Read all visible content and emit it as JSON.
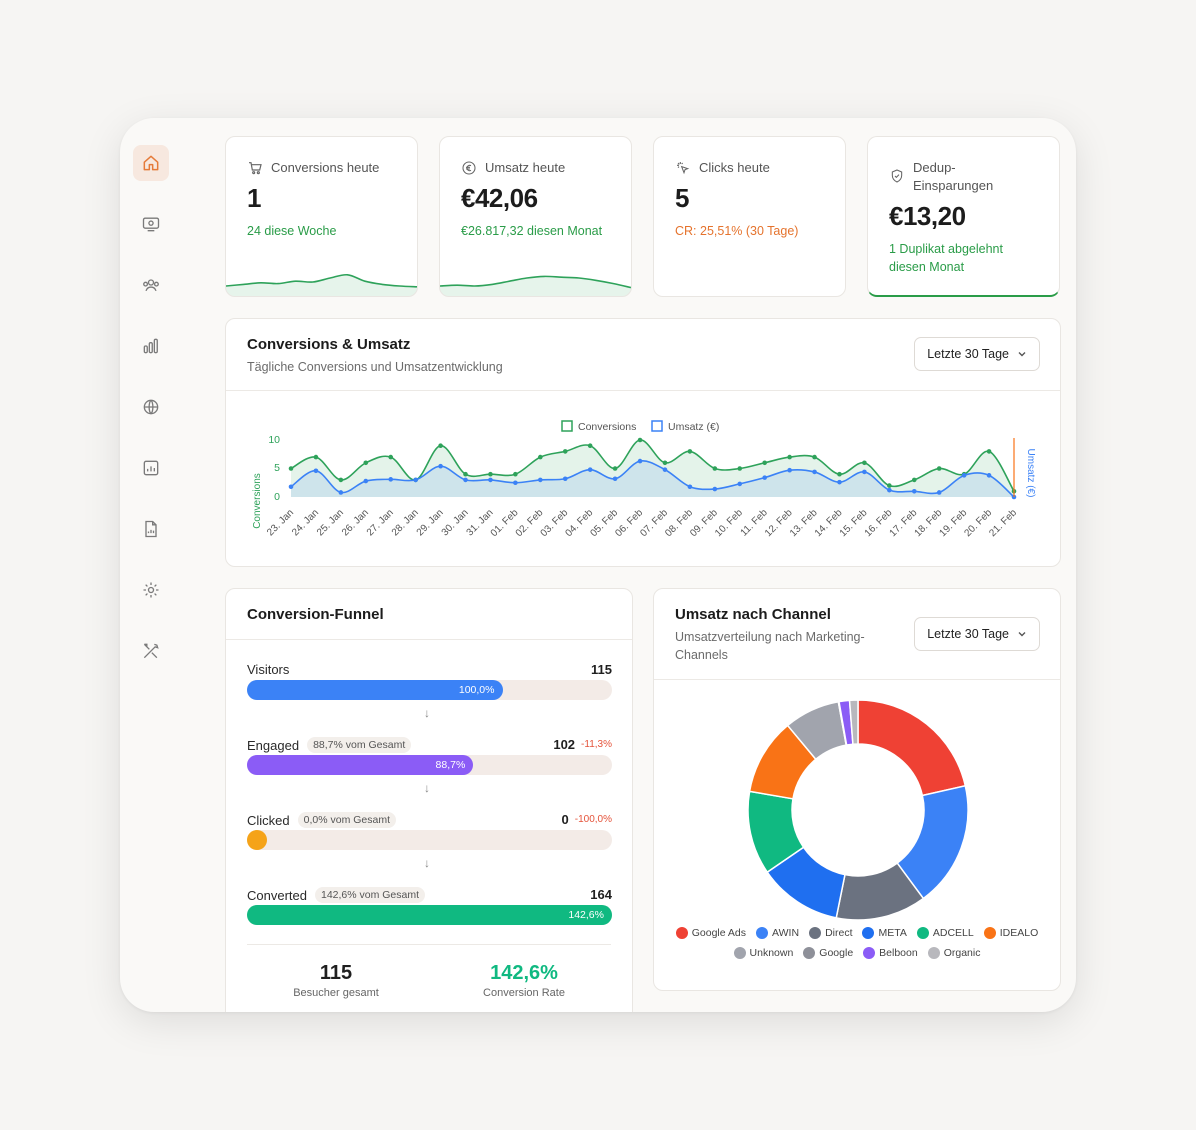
{
  "nav": [
    "home",
    "dashboard",
    "users",
    "analytics",
    "globe",
    "reports",
    "file-chart",
    "settings",
    "tools"
  ],
  "kpis": {
    "conversions": {
      "label": "Conversions heute",
      "value": "1",
      "sub": "24 diese Woche",
      "spark": [
        1,
        1.2,
        1.4,
        1.3,
        1.6,
        1.5,
        2,
        2.4,
        1.6,
        1.2,
        1.0,
        0.9
      ]
    },
    "umsatz": {
      "label": "Umsatz heute",
      "value": "€42,06",
      "sub": "€26.817,32 diesen Monat",
      "spark": [
        1,
        1.1,
        1.0,
        1.2,
        1.6,
        2.0,
        2.2,
        2.1,
        2.0,
        1.7,
        1.3,
        0.8
      ]
    },
    "clicks": {
      "label": "Clicks heute",
      "value": "5",
      "sub": "CR: 25,51% (30 Tage)"
    },
    "dedup": {
      "label": "Dedup-Einsparungen",
      "value": "€13,20",
      "sub": "1 Duplikat abgelehnt diesen Monat"
    }
  },
  "main_chart": {
    "title": "Conversions & Umsatz",
    "subtitle": "Tägliche Conversions und Umsatzentwicklung",
    "range": "Letzte 30 Tage",
    "legend_conversions": "Conversions",
    "legend_umsatz": "Umsatz (€)",
    "ylabel_left": "Conversions",
    "ylabel_right": "Umsatz (€)",
    "ticks_left": [
      "10",
      "5",
      "0"
    ]
  },
  "chart_data": {
    "type": "line",
    "x": [
      "23. Jan",
      "24. Jan",
      "25. Jan",
      "26. Jan",
      "27. Jan",
      "28. Jan",
      "29. Jan",
      "30. Jan",
      "31. Jan",
      "01. Feb",
      "02. Feb",
      "03. Feb",
      "04. Feb",
      "05. Feb",
      "06. Feb",
      "07. Feb",
      "08. Feb",
      "09. Feb",
      "10. Feb",
      "11. Feb",
      "12. Feb",
      "13. Feb",
      "14. Feb",
      "15. Feb",
      "16. Feb",
      "17. Feb",
      "18. Feb",
      "19. Feb",
      "20. Feb",
      "21. Feb"
    ],
    "series": [
      {
        "name": "Conversions",
        "color": "#2ea25a",
        "values": [
          5,
          7,
          3,
          6,
          7,
          3,
          9,
          4,
          4,
          4,
          7,
          8,
          9,
          5,
          10,
          6,
          8,
          5,
          5,
          6,
          7,
          7,
          4,
          6,
          2,
          3,
          5,
          4,
          8,
          1
        ]
      },
      {
        "name": "Umsatz (€)",
        "color": "#3b82f6",
        "values": [
          1.8,
          4.6,
          0.8,
          2.8,
          3.1,
          3.0,
          5.4,
          3.0,
          3.0,
          2.5,
          3.0,
          3.2,
          4.8,
          3.2,
          6.3,
          4.8,
          1.8,
          1.4,
          2.3,
          3.4,
          4.7,
          4.4,
          2.6,
          4.4,
          1.2,
          1.0,
          0.8,
          3.8,
          3.8,
          0
        ]
      }
    ],
    "ylim": [
      0,
      10
    ]
  },
  "funnel": {
    "title": "Conversion-Funnel",
    "steps": [
      {
        "label": "Visitors",
        "pill": "",
        "count": "115",
        "delta": "",
        "pct": "100,0%",
        "fill": 0.7,
        "color": "#3b82f6"
      },
      {
        "label": "Engaged",
        "pill": "88,7% vom Gesamt",
        "count": "102",
        "delta": "-11,3%",
        "pct": "88,7%",
        "fill": 0.62,
        "color": "#8b5cf6"
      },
      {
        "label": "Clicked",
        "pill": "0,0% vom Gesamt",
        "count": "0",
        "delta": "-100,0%",
        "pct": "",
        "fill": 0.05,
        "color": "#f5a319"
      },
      {
        "label": "Converted",
        "pill": "142,6% vom Gesamt",
        "count": "164",
        "delta": "",
        "pct": "142,6%",
        "fill": 1.0,
        "color": "#10b981"
      }
    ],
    "arrow": "↓",
    "total_visitors": "115",
    "total_visitors_label": "Besucher gesamt",
    "conversion_rate": "142,6%",
    "conversion_rate_label": "Conversion Rate"
  },
  "channel": {
    "title": "Umsatz nach Channel",
    "subtitle_1": "Umsatzverteilung nach Marketing-",
    "subtitle_2": "Channels",
    "range": "Letzte 30 Tage",
    "slices": [
      {
        "name": "Google Ads",
        "value": 21,
        "color": "#ef4134"
      },
      {
        "name": "AWIN",
        "value": 18,
        "color": "#3b82f6"
      },
      {
        "name": "Direct",
        "value": 13,
        "color": "#6b7280"
      },
      {
        "name": "META",
        "value": 12,
        "color": "#1f6ff0"
      },
      {
        "name": "ADCELL",
        "value": 12,
        "color": "#10b981"
      },
      {
        "name": "IDEALO",
        "value": 11,
        "color": "#f97316"
      },
      {
        "name": "Unknown",
        "value": 8,
        "color": "#a1a4ad"
      },
      {
        "name": "Google",
        "value": 0.1,
        "color": "#8e9099"
      },
      {
        "name": "Belboon",
        "value": 1.5,
        "color": "#8b5cf6"
      },
      {
        "name": "Organic",
        "value": 1.2,
        "color": "#b8b8bd"
      }
    ]
  }
}
